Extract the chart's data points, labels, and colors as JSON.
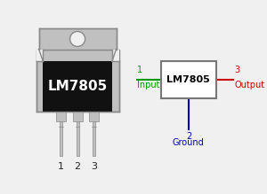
{
  "bg_color": "#f0f0f0",
  "transistor_body_color": "#c0c0c0",
  "transistor_black_color": "#111111",
  "transistor_text": "LM7805",
  "transistor_text_color": "#ffffff",
  "pin_labels": [
    "1",
    "2",
    "3"
  ],
  "box_text": "LM7805",
  "box_color": "#ffffff",
  "box_edge_color": "#777777",
  "input_color": "#009900",
  "output_color": "#cc0000",
  "ground_color": "#0000bb"
}
